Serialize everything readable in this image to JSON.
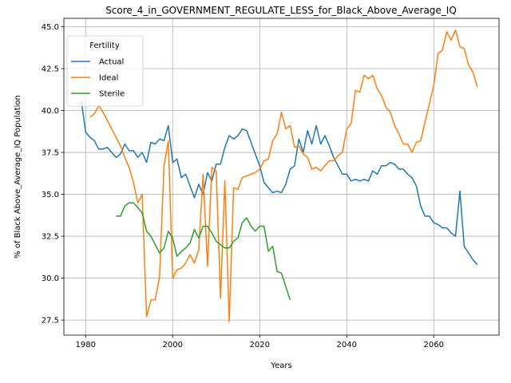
{
  "chart_data": {
    "type": "line",
    "title": "Score_4_in_GOVERNMENT_REGULATE_LESS_for_Black_Above_Average_IQ",
    "xlabel": "Years",
    "ylabel": "% of Black Above_Average_IQ Population",
    "xlim": [
      1975,
      2075
    ],
    "ylim": [
      26.6,
      45.5
    ],
    "xticks": [
      1980,
      2000,
      2020,
      2040,
      2060
    ],
    "yticks": [
      27.5,
      30.0,
      32.5,
      35.0,
      37.5,
      40.0,
      42.5,
      45.0
    ],
    "grid": true,
    "legend": {
      "title": "Fertility",
      "placement": "top-left"
    },
    "series": [
      {
        "name": "Actual",
        "color": "#1f77b4",
        "points": [
          [
            1979,
            40.6
          ],
          [
            1980,
            38.7
          ],
          [
            1981,
            38.4
          ],
          [
            1982,
            38.2
          ],
          [
            1983,
            37.7
          ],
          [
            1984,
            37.7
          ],
          [
            1985,
            37.8
          ],
          [
            1986,
            37.5
          ],
          [
            1987,
            37.2
          ],
          [
            1988,
            37.4
          ],
          [
            1989,
            38.0
          ],
          [
            1990,
            37.6
          ],
          [
            1991,
            37.6
          ],
          [
            1992,
            37.2
          ],
          [
            1993,
            37.5
          ],
          [
            1994,
            36.9
          ],
          [
            1995,
            38.1
          ],
          [
            1996,
            38.0
          ],
          [
            1997,
            38.3
          ],
          [
            1998,
            38.2
          ],
          [
            1999,
            39.1
          ],
          [
            2000,
            36.9
          ],
          [
            2001,
            37.1
          ],
          [
            2002,
            36.0
          ],
          [
            2003,
            36.2
          ],
          [
            2004,
            35.5
          ],
          [
            2005,
            34.8
          ],
          [
            2006,
            35.6
          ],
          [
            2007,
            35.0
          ],
          [
            2008,
            36.3
          ],
          [
            2009,
            35.8
          ],
          [
            2010,
            36.8
          ],
          [
            2011,
            36.8
          ],
          [
            2012,
            37.8
          ],
          [
            2013,
            38.5
          ],
          [
            2014,
            38.3
          ],
          [
            2015,
            38.5
          ],
          [
            2016,
            38.9
          ],
          [
            2017,
            38.8
          ],
          [
            2018,
            38.1
          ],
          [
            2019,
            37.4
          ],
          [
            2020,
            36.7
          ],
          [
            2021,
            35.7
          ],
          [
            2022,
            35.4
          ],
          [
            2023,
            35.1
          ],
          [
            2024,
            35.2
          ],
          [
            2025,
            35.1
          ],
          [
            2026,
            35.6
          ],
          [
            2027,
            36.5
          ],
          [
            2028,
            36.7
          ],
          [
            2029,
            38.3
          ],
          [
            2030,
            37.5
          ],
          [
            2031,
            38.8
          ],
          [
            2032,
            38.0
          ],
          [
            2033,
            39.1
          ],
          [
            2034,
            38.0
          ],
          [
            2035,
            38.5
          ],
          [
            2036,
            37.9
          ],
          [
            2037,
            37.2
          ],
          [
            2038,
            36.7
          ],
          [
            2039,
            36.2
          ],
          [
            2040,
            36.2
          ],
          [
            2041,
            35.8
          ],
          [
            2042,
            35.9
          ],
          [
            2043,
            35.8
          ],
          [
            2044,
            35.9
          ],
          [
            2045,
            35.8
          ],
          [
            2046,
            36.4
          ],
          [
            2047,
            36.2
          ],
          [
            2048,
            36.7
          ],
          [
            2049,
            36.7
          ],
          [
            2050,
            36.9
          ],
          [
            2051,
            36.8
          ],
          [
            2052,
            36.5
          ],
          [
            2053,
            36.5
          ],
          [
            2054,
            36.2
          ],
          [
            2055,
            36.0
          ],
          [
            2056,
            35.5
          ],
          [
            2057,
            34.3
          ],
          [
            2058,
            33.7
          ],
          [
            2059,
            33.7
          ],
          [
            2060,
            33.3
          ],
          [
            2061,
            33.2
          ],
          [
            2062,
            33.0
          ],
          [
            2063,
            33.0
          ],
          [
            2064,
            32.7
          ],
          [
            2065,
            32.5
          ],
          [
            2066,
            35.2
          ],
          [
            2067,
            31.9
          ],
          [
            2068,
            31.5
          ],
          [
            2069,
            31.1
          ],
          [
            2070,
            30.8
          ]
        ]
      },
      {
        "name": "Ideal",
        "color": "#ff7f0e",
        "points": [
          [
            1981,
            39.6
          ],
          [
            1982,
            39.8
          ],
          [
            1983,
            40.3
          ],
          [
            1984,
            39.9
          ],
          [
            1985,
            39.4
          ],
          [
            1986,
            38.9
          ],
          [
            1987,
            38.4
          ],
          [
            1988,
            37.9
          ],
          [
            1989,
            37.2
          ],
          [
            1990,
            36.6
          ],
          [
            1991,
            35.7
          ],
          [
            1992,
            34.5
          ],
          [
            1993,
            35.0
          ],
          [
            1994,
            27.7
          ],
          [
            1995,
            28.7
          ],
          [
            1996,
            28.7
          ],
          [
            1997,
            30.1
          ],
          [
            1998,
            36.7
          ],
          [
            1999,
            38.2
          ],
          [
            2000,
            30.0
          ],
          [
            2001,
            30.5
          ],
          [
            2002,
            30.6
          ],
          [
            2003,
            30.9
          ],
          [
            2004,
            31.4
          ],
          [
            2005,
            30.9
          ],
          [
            2006,
            31.7
          ],
          [
            2007,
            36.2
          ],
          [
            2008,
            30.7
          ],
          [
            2009,
            36.6
          ],
          [
            2010,
            36.4
          ],
          [
            2011,
            28.8
          ],
          [
            2012,
            35.8
          ],
          [
            2013,
            27.4
          ],
          [
            2014,
            35.4
          ],
          [
            2015,
            35.3
          ],
          [
            2016,
            36.0
          ],
          [
            2017,
            36.1
          ],
          [
            2018,
            36.2
          ],
          [
            2019,
            36.3
          ],
          [
            2020,
            36.5
          ],
          [
            2021,
            37.0
          ],
          [
            2022,
            37.1
          ],
          [
            2023,
            38.2
          ],
          [
            2024,
            38.6
          ],
          [
            2025,
            39.9
          ],
          [
            2026,
            38.9
          ],
          [
            2027,
            39.1
          ],
          [
            2028,
            37.8
          ],
          [
            2029,
            37.9
          ],
          [
            2030,
            37.4
          ],
          [
            2031,
            37.2
          ],
          [
            2032,
            36.5
          ],
          [
            2033,
            36.6
          ],
          [
            2034,
            36.4
          ],
          [
            2035,
            36.7
          ],
          [
            2036,
            37.0
          ],
          [
            2037,
            37.0
          ],
          [
            2038,
            37.3
          ],
          [
            2039,
            37.5
          ],
          [
            2040,
            38.9
          ],
          [
            2041,
            39.2
          ],
          [
            2042,
            41.2
          ],
          [
            2043,
            41.1
          ],
          [
            2044,
            42.1
          ],
          [
            2045,
            41.9
          ],
          [
            2046,
            42.1
          ],
          [
            2047,
            41.3
          ],
          [
            2048,
            40.9
          ],
          [
            2049,
            40.2
          ],
          [
            2050,
            39.9
          ],
          [
            2051,
            39.1
          ],
          [
            2052,
            38.6
          ],
          [
            2053,
            38.0
          ],
          [
            2054,
            38.0
          ],
          [
            2055,
            37.5
          ],
          [
            2056,
            38.1
          ],
          [
            2057,
            38.2
          ],
          [
            2058,
            39.3
          ],
          [
            2059,
            40.4
          ],
          [
            2060,
            41.5
          ],
          [
            2061,
            43.4
          ],
          [
            2062,
            43.6
          ],
          [
            2063,
            44.7
          ],
          [
            2064,
            44.2
          ],
          [
            2065,
            44.8
          ],
          [
            2066,
            43.8
          ],
          [
            2067,
            43.7
          ],
          [
            2068,
            42.7
          ],
          [
            2069,
            42.3
          ],
          [
            2070,
            41.4
          ]
        ]
      },
      {
        "name": "Sterile",
        "color": "#2ca02c",
        "points": [
          [
            1987,
            33.7
          ],
          [
            1988,
            33.7
          ],
          [
            1989,
            34.3
          ],
          [
            1990,
            34.5
          ],
          [
            1991,
            34.5
          ],
          [
            1992,
            34.2
          ],
          [
            1993,
            33.9
          ],
          [
            1994,
            32.8
          ],
          [
            1995,
            32.5
          ],
          [
            1996,
            32.0
          ],
          [
            1997,
            31.5
          ],
          [
            1998,
            31.8
          ],
          [
            1999,
            32.8
          ],
          [
            2000,
            32.4
          ],
          [
            2001,
            31.3
          ],
          [
            2002,
            31.6
          ],
          [
            2003,
            31.8
          ],
          [
            2004,
            32.1
          ],
          [
            2005,
            32.9
          ],
          [
            2006,
            32.4
          ],
          [
            2007,
            33.1
          ],
          [
            2008,
            33.1
          ],
          [
            2009,
            32.7
          ],
          [
            2010,
            32.2
          ],
          [
            2011,
            32.0
          ],
          [
            2012,
            31.8
          ],
          [
            2013,
            31.8
          ],
          [
            2014,
            32.2
          ],
          [
            2015,
            32.4
          ],
          [
            2016,
            33.3
          ],
          [
            2017,
            33.6
          ],
          [
            2018,
            33.1
          ],
          [
            2019,
            32.8
          ],
          [
            2020,
            33.1
          ],
          [
            2021,
            33.1
          ],
          [
            2022,
            31.6
          ],
          [
            2023,
            31.9
          ],
          [
            2024,
            30.4
          ],
          [
            2025,
            30.3
          ],
          [
            2026,
            29.5
          ],
          [
            2027,
            28.7
          ]
        ]
      }
    ]
  }
}
